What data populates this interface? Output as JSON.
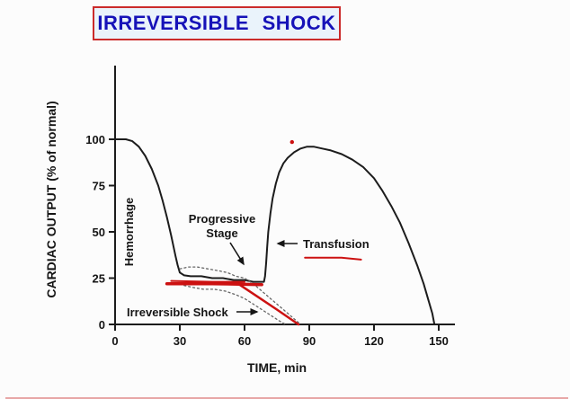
{
  "title": "IRREVERSIBLE SHOCK",
  "colors": {
    "title_text": "#1612b8",
    "title_box_border": "#cb2b2b",
    "title_box_bg": "#eaf3fb",
    "curve": "#1c1c1c",
    "red_annotation": "#cc1111",
    "dotted_band": "#666666"
  },
  "chart_data": {
    "type": "line",
    "title": "IRREVERSIBLE SHOCK",
    "xlabel": "TIME, min",
    "ylabel": "CARDIAC OUTPUT (% of normal)",
    "xlim": [
      0,
      157
    ],
    "ylim": [
      0,
      139
    ],
    "x_ticks": [
      0,
      30,
      60,
      90,
      120,
      150
    ],
    "y_ticks": [
      0,
      25,
      50,
      75,
      100
    ],
    "grid": false,
    "legend": "none",
    "annotations": {
      "hemorrhage": "Hemorrhage",
      "progressive_stage": [
        "Progressive",
        "Stage"
      ],
      "transfusion": "Transfusion",
      "irreversible_shock": "Irreversible Shock"
    },
    "series": [
      {
        "name": "cardiac-output-curve",
        "color": "#1c1c1c",
        "width": 2,
        "dash": null,
        "points": [
          [
            0,
            100
          ],
          [
            5,
            100
          ],
          [
            8,
            99
          ],
          [
            11,
            96
          ],
          [
            14,
            91
          ],
          [
            17,
            84
          ],
          [
            20,
            75
          ],
          [
            22,
            67
          ],
          [
            24,
            58
          ],
          [
            26,
            48
          ],
          [
            28,
            37
          ],
          [
            29,
            32
          ],
          [
            30,
            28
          ],
          [
            32,
            26.5
          ],
          [
            35,
            26
          ],
          [
            40,
            26
          ],
          [
            45,
            25
          ],
          [
            50,
            25
          ],
          [
            55,
            24
          ],
          [
            60,
            24
          ],
          [
            64,
            23
          ],
          [
            69,
            23
          ],
          [
            69.5,
            26
          ],
          [
            70,
            33
          ],
          [
            70.5,
            42
          ],
          [
            71,
            50
          ],
          [
            72,
            60
          ],
          [
            73,
            68
          ],
          [
            74.5,
            76
          ],
          [
            76,
            82
          ],
          [
            78,
            87
          ],
          [
            80,
            90
          ],
          [
            83,
            93
          ],
          [
            86,
            95
          ],
          [
            89,
            96
          ],
          [
            92,
            96
          ],
          [
            96,
            95
          ],
          [
            100,
            94
          ],
          [
            105,
            92
          ],
          [
            110,
            89
          ],
          [
            115,
            85
          ],
          [
            120,
            79
          ],
          [
            124,
            72
          ],
          [
            128,
            64
          ],
          [
            132,
            55
          ],
          [
            136,
            44
          ],
          [
            140,
            32
          ],
          [
            143,
            22
          ],
          [
            145,
            14
          ],
          [
            147,
            6
          ],
          [
            148,
            0
          ]
        ]
      },
      {
        "name": "dotted-upper-band",
        "color": "#666666",
        "width": 1.3,
        "dash": "2 3",
        "points": [
          [
            30,
            30
          ],
          [
            34,
            31
          ],
          [
            38,
            31
          ],
          [
            43,
            30
          ],
          [
            48,
            29
          ],
          [
            52,
            28
          ],
          [
            56,
            26
          ],
          [
            60,
            25
          ],
          [
            64,
            22
          ],
          [
            68,
            18
          ],
          [
            72,
            14
          ],
          [
            76,
            10
          ],
          [
            80,
            6
          ],
          [
            84,
            2
          ],
          [
            86,
            0
          ]
        ]
      },
      {
        "name": "dotted-lower-band",
        "color": "#666666",
        "width": 1.3,
        "dash": "2 3",
        "points": [
          [
            32,
            21
          ],
          [
            36,
            20
          ],
          [
            41,
            19
          ],
          [
            46,
            19
          ],
          [
            51,
            18
          ],
          [
            56,
            16
          ],
          [
            60,
            14
          ],
          [
            64,
            11
          ],
          [
            68,
            8
          ],
          [
            72,
            5
          ],
          [
            76,
            2
          ],
          [
            79,
            0
          ]
        ]
      },
      {
        "name": "red-plateau-stroke-1",
        "color": "#cc1111",
        "width": 3.5,
        "dash": null,
        "points": [
          [
            24,
            22
          ],
          [
            45,
            22
          ],
          [
            68,
            21.5
          ]
        ]
      },
      {
        "name": "red-plateau-stroke-2",
        "color": "#cc1111",
        "width": 2,
        "dash": null,
        "points": [
          [
            26,
            23.5
          ],
          [
            45,
            23
          ],
          [
            60,
            23
          ]
        ]
      },
      {
        "name": "red-decline",
        "color": "#cc1111",
        "width": 2.5,
        "dash": null,
        "points": [
          [
            57,
            22
          ],
          [
            66,
            15
          ],
          [
            75,
            8
          ],
          [
            85,
            0
          ]
        ]
      },
      {
        "name": "transfusion-underline",
        "color": "#cc1111",
        "width": 2,
        "dash": null,
        "points": [
          [
            88,
            36
          ],
          [
            97,
            36
          ],
          [
            105,
            36
          ],
          [
            114,
            35
          ]
        ]
      }
    ],
    "markers": [
      {
        "name": "red-dot",
        "x": 82,
        "y": 98.5,
        "r": 2.2,
        "color": "#cc1111"
      }
    ]
  }
}
